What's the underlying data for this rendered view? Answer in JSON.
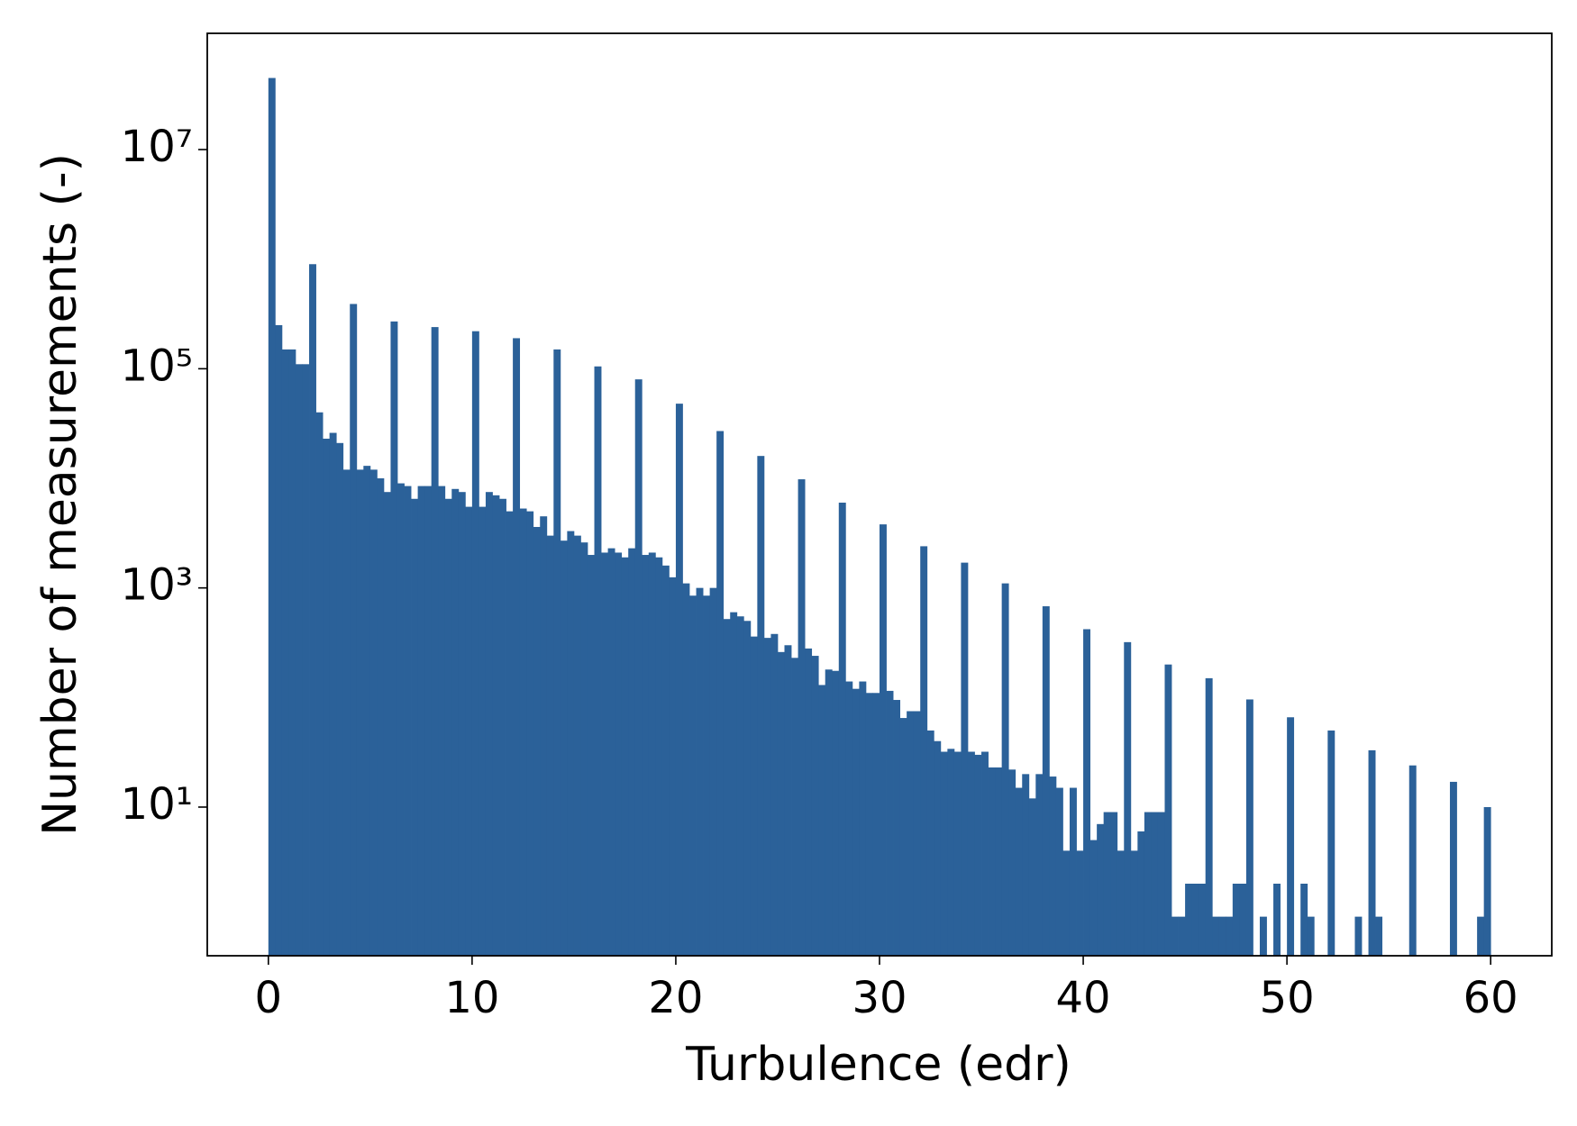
{
  "chart_data": {
    "type": "histogram",
    "xlabel": "Turbulence (edr)",
    "ylabel": "Number of measurements (-)",
    "color": "#2b6199",
    "log_y": true,
    "xlim": [
      -3,
      63
    ],
    "ylim": [
      0.44,
      115000000
    ],
    "xticks": [
      0,
      10,
      20,
      30,
      40,
      50,
      60
    ],
    "yticks": [
      {
        "value": 10,
        "label": "10¹"
      },
      {
        "value": 1000,
        "label": "10³"
      },
      {
        "value": 100000,
        "label": "10⁵"
      },
      {
        "value": 10000000,
        "label": "10⁷"
      }
    ],
    "bins": [
      0,
      0.3333,
      0.6667,
      1,
      1.3333,
      1.6667,
      2,
      2.3333,
      2.6667,
      3,
      3.3333,
      3.6667,
      4,
      4.3333,
      4.6667,
      5,
      5.3333,
      5.6667,
      6,
      6.3333,
      6.6667,
      7,
      7.3333,
      7.6667,
      8,
      8.3333,
      8.6667,
      9,
      9.3333,
      9.6667,
      10,
      10.3333,
      10.6667,
      11,
      11.3333,
      11.6667,
      12,
      12.3333,
      12.6667,
      13,
      13.3333,
      13.6667,
      14,
      14.3333,
      14.6667,
      15,
      15.3333,
      15.6667,
      16,
      16.3333,
      16.6667,
      17,
      17.3333,
      17.6667,
      18,
      18.3333,
      18.6667,
      19,
      19.3333,
      19.6667,
      20,
      20.3333,
      20.6667,
      21,
      21.3333,
      21.6667,
      22,
      22.3333,
      22.6667,
      23,
      23.3333,
      23.6667,
      24,
      24.3333,
      24.6667,
      25,
      25.3333,
      25.6667,
      26,
      26.3333,
      26.6667,
      27,
      27.3333,
      27.6667,
      28,
      28.3333,
      28.6667,
      29,
      29.3333,
      29.6667,
      30,
      30.3333,
      30.6667,
      31,
      31.3333,
      31.6667,
      32,
      32.3333,
      32.6667,
      33,
      33.3333,
      33.6667,
      34,
      34.3333,
      34.6667,
      35,
      35.3333,
      35.6667,
      36,
      36.3333,
      36.6667,
      37,
      37.3333,
      37.6667,
      38,
      38.3333,
      38.6667,
      39,
      39.3333,
      39.6667,
      40,
      40.3333,
      40.6667,
      41,
      41.3333,
      41.6667,
      42,
      42.3333,
      42.6667,
      43,
      43.3333,
      43.6667,
      44,
      44.3333,
      44.6667,
      45,
      45.3333,
      45.6667,
      46,
      46.3333,
      46.6667,
      47,
      47.3333,
      47.6667,
      48,
      48.3333,
      48.6667,
      49,
      49.3333,
      49.6667,
      50,
      50.3333,
      50.6667,
      51,
      51.3333,
      51.6667,
      52,
      52.3333,
      52.6667,
      53,
      53.3333,
      53.6667,
      54,
      54.3333,
      54.6667,
      55,
      55.3333,
      55.6667,
      56,
      56.3333,
      56.6667,
      57,
      57.3333,
      57.6667,
      58,
      58.3333,
      58.6667,
      59,
      59.3333,
      59.6667,
      60
    ],
    "values": [
      45000000,
      250000,
      150000,
      150000,
      110000,
      110000,
      900000,
      40000,
      23000,
      26000,
      21000,
      12000,
      390000,
      12000,
      13000,
      12000,
      10000,
      7500,
      270000,
      9000,
      8500,
      6500,
      8500,
      8500,
      240000,
      8500,
      6500,
      8000,
      7500,
      5500,
      220000,
      5500,
      7500,
      7000,
      6500,
      5000,
      190000,
      5300,
      5000,
      3600,
      4500,
      3000,
      150000,
      2700,
      3300,
      3000,
      2600,
      2000,
      105000,
      2100,
      2300,
      2100,
      1900,
      2300,
      80000,
      2000,
      2100,
      1900,
      1600,
      1250,
      48000,
      1100,
      850,
      1000,
      850,
      1000,
      27000,
      520,
      600,
      550,
      500,
      360,
      16000,
      350,
      380,
      260,
      300,
      230,
      9800,
      280,
      240,
      130,
      180,
      175,
      6000,
      140,
      120,
      140,
      110,
      110,
      3800,
      115,
      95,
      65,
      75,
      75,
      2400,
      50,
      40,
      32,
      34,
      32,
      1700,
      32,
      30,
      32,
      23,
      23,
      1100,
      22,
      15,
      20,
      12,
      20,
      680,
      19,
      15,
      4,
      15,
      4,
      420,
      5,
      7,
      9,
      9,
      4,
      320,
      4,
      6,
      9,
      9,
      9,
      200,
      1,
      1,
      2,
      2,
      2,
      150,
      1,
      1,
      1,
      2,
      2,
      96,
      0,
      1,
      0,
      2,
      0,
      66,
      0,
      2,
      1,
      0,
      0,
      50,
      0,
      0,
      0,
      1,
      0,
      33,
      1,
      0,
      0,
      0,
      0,
      24,
      0,
      0,
      0,
      0,
      0,
      17,
      0,
      0,
      0,
      1,
      10
    ]
  }
}
